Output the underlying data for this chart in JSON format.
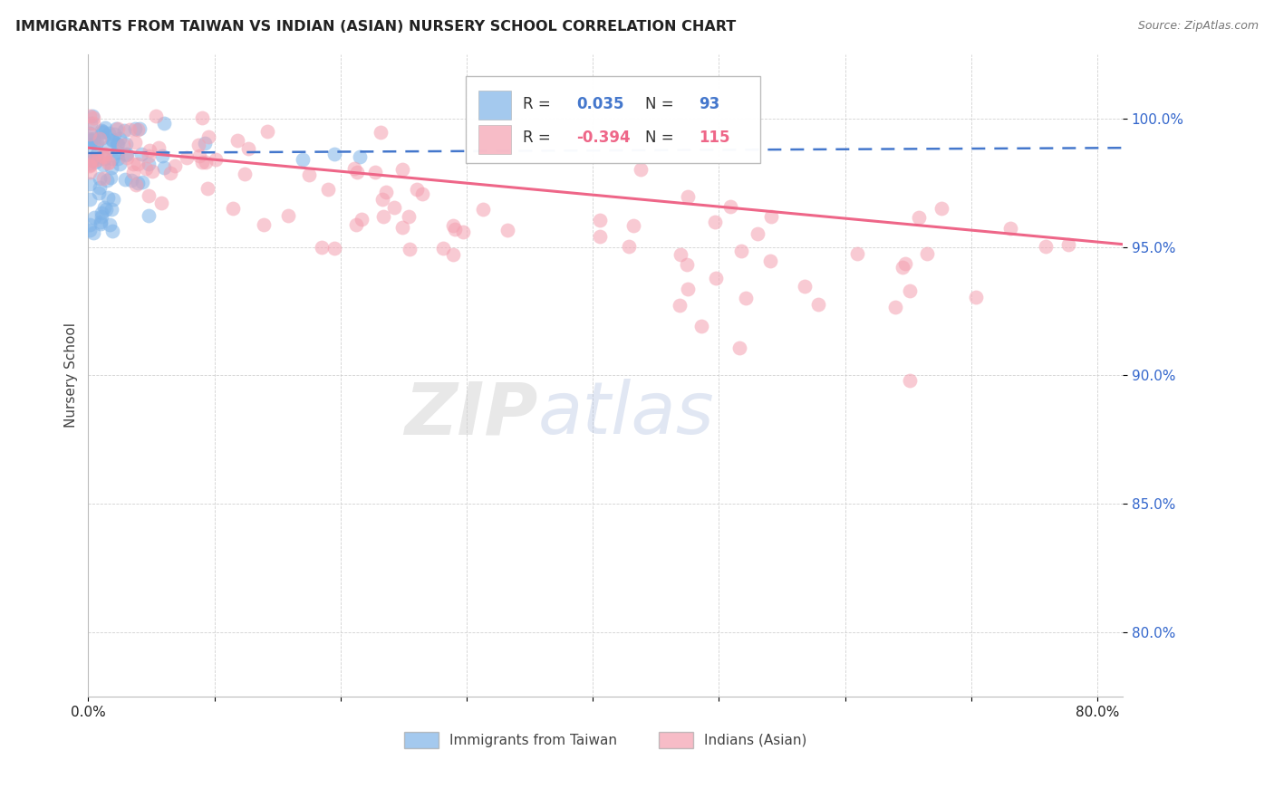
{
  "title": "IMMIGRANTS FROM TAIWAN VS INDIAN (ASIAN) NURSERY SCHOOL CORRELATION CHART",
  "source": "Source: ZipAtlas.com",
  "ylabel": "Nursery School",
  "ytick_labels": [
    "80.0%",
    "85.0%",
    "90.0%",
    "95.0%",
    "100.0%"
  ],
  "ytick_values": [
    0.8,
    0.85,
    0.9,
    0.95,
    1.0
  ],
  "xtick_positions": [
    0.0,
    0.1,
    0.2,
    0.3,
    0.4,
    0.5,
    0.6,
    0.7,
    0.8
  ],
  "xtick_labels": [
    "0.0%",
    "",
    "",
    "",
    "",
    "",
    "",
    "",
    "80.0%"
  ],
  "xlim": [
    0.0,
    0.82
  ],
  "ylim": [
    0.775,
    1.025
  ],
  "legend_taiwan_R": "0.035",
  "legend_taiwan_N": "93",
  "legend_indian_R": "-0.394",
  "legend_indian_N": "115",
  "taiwan_color": "#7EB3E8",
  "indian_color": "#F4A0B0",
  "taiwan_line_color": "#4477CC",
  "indian_line_color": "#EE6688",
  "background_color": "#FFFFFF",
  "grid_color": "#CCCCCC",
  "title_color": "#222222",
  "axis_label_color": "#444444",
  "ytick_color": "#3366CC",
  "xtick_color": "#222222",
  "source_color": "#777777"
}
